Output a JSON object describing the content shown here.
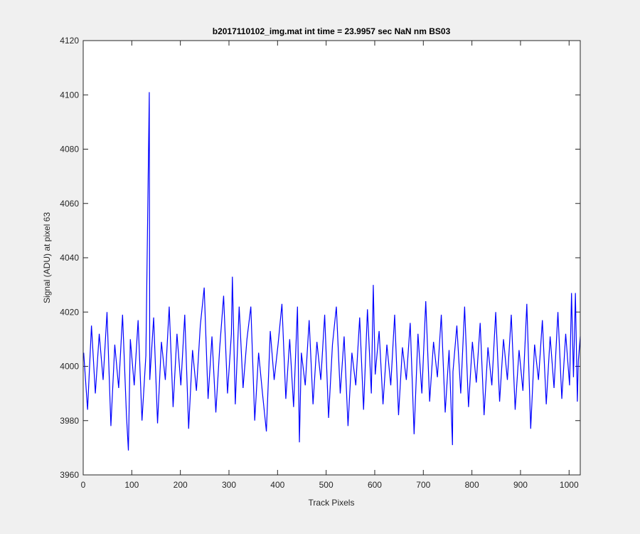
{
  "chart_data": {
    "type": "line",
    "title": "b2017110102_img.mat int time = 23.9957 sec  NaN nm BS03",
    "x_label": "Track Pixels",
    "y_label": "Signal (ADU) at pixel 63",
    "xlim": [
      0,
      1023
    ],
    "ylim": [
      3960,
      4120
    ],
    "xticks": [
      0,
      100,
      200,
      300,
      400,
      500,
      600,
      700,
      800,
      900,
      1000
    ],
    "yticks": [
      3960,
      3980,
      4000,
      4020,
      4040,
      4060,
      4080,
      4100,
      4120
    ],
    "color": "#0000ff",
    "x": [
      1,
      9,
      17,
      25,
      33,
      41,
      49,
      57,
      65,
      73,
      81,
      89,
      93,
      97,
      105,
      113,
      121,
      129,
      136,
      137,
      145,
      153,
      161,
      169,
      177,
      185,
      193,
      201,
      209,
      217,
      225,
      233,
      241,
      249,
      257,
      265,
      273,
      281,
      289,
      297,
      305,
      307,
      313,
      321,
      329,
      337,
      345,
      353,
      361,
      369,
      377,
      385,
      393,
      401,
      409,
      417,
      425,
      433,
      441,
      445,
      449,
      457,
      465,
      473,
      481,
      489,
      497,
      505,
      513,
      521,
      529,
      537,
      545,
      553,
      561,
      569,
      577,
      585,
      593,
      597,
      601,
      609,
      617,
      625,
      633,
      641,
      649,
      657,
      665,
      673,
      681,
      689,
      697,
      705,
      713,
      721,
      729,
      737,
      745,
      753,
      760,
      761,
      769,
      777,
      785,
      793,
      801,
      809,
      817,
      825,
      833,
      841,
      849,
      857,
      865,
      873,
      881,
      889,
      897,
      905,
      913,
      921,
      929,
      937,
      945,
      953,
      961,
      969,
      977,
      985,
      993,
      1001,
      1005,
      1009,
      1013,
      1017,
      1019,
      1023
    ],
    "values": [
      4005,
      3984,
      4015,
      3990,
      4012,
      3995,
      4020,
      3978,
      4008,
      3992,
      4019,
      3982,
      3969,
      4010,
      3993,
      4017,
      3980,
      4004,
      4101,
      3995,
      4018,
      3979,
      4009,
      3995,
      4022,
      3985,
      4012,
      3993,
      4019,
      3977,
      4006,
      3991,
      4015,
      4029,
      3988,
      4011,
      3983,
      4007,
      4026,
      3990,
      4012,
      4033,
      3986,
      4022,
      3992,
      4010,
      4022,
      3980,
      4005,
      3990,
      3976,
      4013,
      3995,
      4008,
      4023,
      3988,
      4010,
      3985,
      4022,
      3972,
      4005,
      3993,
      4017,
      3986,
      4009,
      3995,
      4019,
      3981,
      4008,
      4022,
      3990,
      4011,
      3978,
      4005,
      3993,
      4018,
      3984,
      4021,
      3990,
      4030,
      3997,
      4013,
      3986,
      4008,
      3993,
      4019,
      3982,
      4007,
      3995,
      4016,
      3975,
      4012,
      3990,
      4024,
      3987,
      4009,
      3996,
      4019,
      3983,
      4006,
      3971,
      3998,
      4015,
      3990,
      4022,
      3985,
      4009,
      3994,
      4016,
      3982,
      4007,
      3993,
      4020,
      3987,
      4010,
      3995,
      4019,
      3984,
      4006,
      3991,
      4023,
      3977,
      4008,
      3995,
      4017,
      3986,
      4011,
      3992,
      4020,
      3988,
      4012,
      3993,
      4027,
      3996,
      4027,
      3987,
      4002,
      4011
    ]
  }
}
